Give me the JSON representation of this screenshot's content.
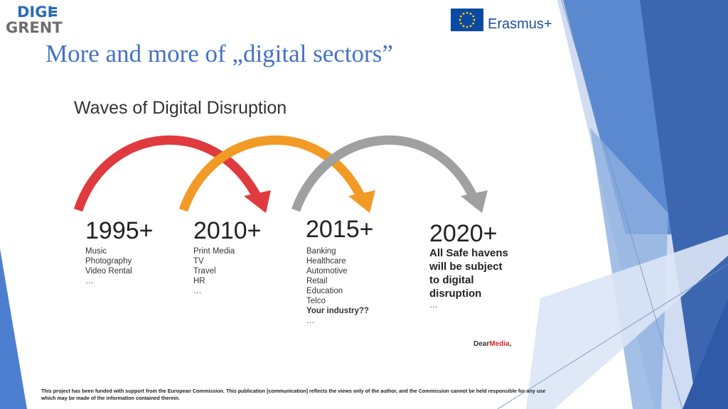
{
  "logos": {
    "digigrent_line1": "DIGI",
    "digigrent_line2": "GRENT",
    "erasmus": "Erasmus+"
  },
  "slide_title": "More and more of „digital sectors”",
  "figure": {
    "heading": "Waves of Digital Disruption",
    "waves": [
      {
        "year": "1995+",
        "color": "#e03a3e",
        "items": [
          "Music",
          "Photography",
          "Video Rental",
          "…"
        ]
      },
      {
        "year": "2010+",
        "color": "#f29a26",
        "items": [
          "Print Media",
          "TV",
          "Travel",
          "HR",
          "…"
        ]
      },
      {
        "year": "2015+",
        "color": "#a0a0a0",
        "items": [
          "Banking",
          "Healthcare",
          "Automotive",
          "Retail",
          "Education",
          "Telco"
        ],
        "bold_item": "Your industry??",
        "last": "…"
      },
      {
        "year": "2020+",
        "items": [
          "All Safe havens",
          "will be subject",
          "to digital",
          "disruption"
        ],
        "last": "…"
      }
    ],
    "credit_prefix": "Dear",
    "credit_brand": "Media",
    "credit_suffix": ","
  },
  "disclaimer": "This project has been funded with support from the European Commission. This publication [communication] reflects the views only of the author, and the Commission cannot be held responsible for any use which may be made of the information contained therein.",
  "colors": {
    "title": "#4472c4",
    "accent_blue": "#2a6db5",
    "decor_blue_dark": "#2e5aa8",
    "decor_blue_mid": "#4d7fd0",
    "decor_blue_light": "#a9c0e6"
  }
}
